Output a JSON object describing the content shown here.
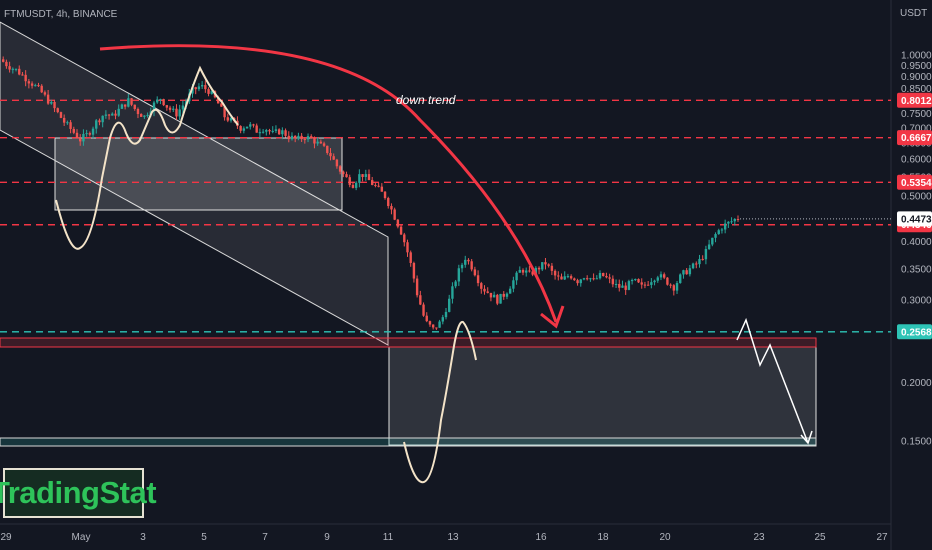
{
  "chart_data": {
    "type": "candlestick",
    "title": "FTMUSDT, 4h, BINANCE",
    "currency": "USDT",
    "y_scale": "log",
    "ylim": [
      0.142,
      1.02
    ],
    "y_ticks": [
      "1.0000",
      "0.9500",
      "0.9000",
      "0.8500",
      "0.7500",
      "0.7000",
      "0.6500",
      "0.6000",
      "0.5500",
      "0.5000",
      "0.4000",
      "0.3500",
      "0.3000",
      "0.2000",
      "0.1500"
    ],
    "x_ticks": [
      "29",
      "May",
      "3",
      "5",
      "7",
      "9",
      "11",
      "13",
      "16",
      "18",
      "20",
      "23",
      "25",
      "27"
    ],
    "grid": false,
    "levels": [
      {
        "value": 0.8012,
        "label": "0.8012",
        "color": "#f23645",
        "style": "dashed"
      },
      {
        "value": 0.6667,
        "label": "0.6667",
        "color": "#f23645",
        "style": "dashed"
      },
      {
        "value": 0.5354,
        "label": "0.5354",
        "color": "#f23645",
        "style": "dashed"
      },
      {
        "value": 0.4346,
        "label": "0.4346",
        "color": "#f23645",
        "style": "dashed"
      },
      {
        "value": 0.2568,
        "label": "0.2568",
        "color": "#2ec4b6",
        "style": "dashed"
      }
    ],
    "last_price": {
      "value": 0.4473,
      "label": "0.4473"
    },
    "annotation": "down trend",
    "ohlc_path": [
      0.98,
      0.95,
      0.93,
      0.9,
      0.87,
      0.84,
      0.8,
      0.76,
      0.72,
      0.69,
      0.66,
      0.68,
      0.72,
      0.75,
      0.74,
      0.77,
      0.8,
      0.76,
      0.74,
      0.78,
      0.81,
      0.77,
      0.75,
      0.79,
      0.84,
      0.86,
      0.84,
      0.8,
      0.74,
      0.72,
      0.7,
      0.71,
      0.69,
      0.7,
      0.68,
      0.69,
      0.67,
      0.66,
      0.67,
      0.66,
      0.64,
      0.62,
      0.58,
      0.55,
      0.53,
      0.56,
      0.54,
      0.52,
      0.5,
      0.46,
      0.42,
      0.37,
      0.31,
      0.27,
      0.26,
      0.27,
      0.3,
      0.34,
      0.37,
      0.35,
      0.32,
      0.31,
      0.3,
      0.31,
      0.33,
      0.35,
      0.34,
      0.35,
      0.36,
      0.34,
      0.33,
      0.34,
      0.33,
      0.34,
      0.33,
      0.34,
      0.33,
      0.32,
      0.32,
      0.33,
      0.32,
      0.33,
      0.34,
      0.33,
      0.32,
      0.34,
      0.35,
      0.36,
      0.38,
      0.41,
      0.43,
      0.44,
      0.45
    ],
    "colors": {
      "up": "#26a69a",
      "down": "#ef5350",
      "arrow": "#f23645",
      "drawing": "#f3e3c8"
    }
  },
  "brand": {
    "name": "TradingStat"
  }
}
